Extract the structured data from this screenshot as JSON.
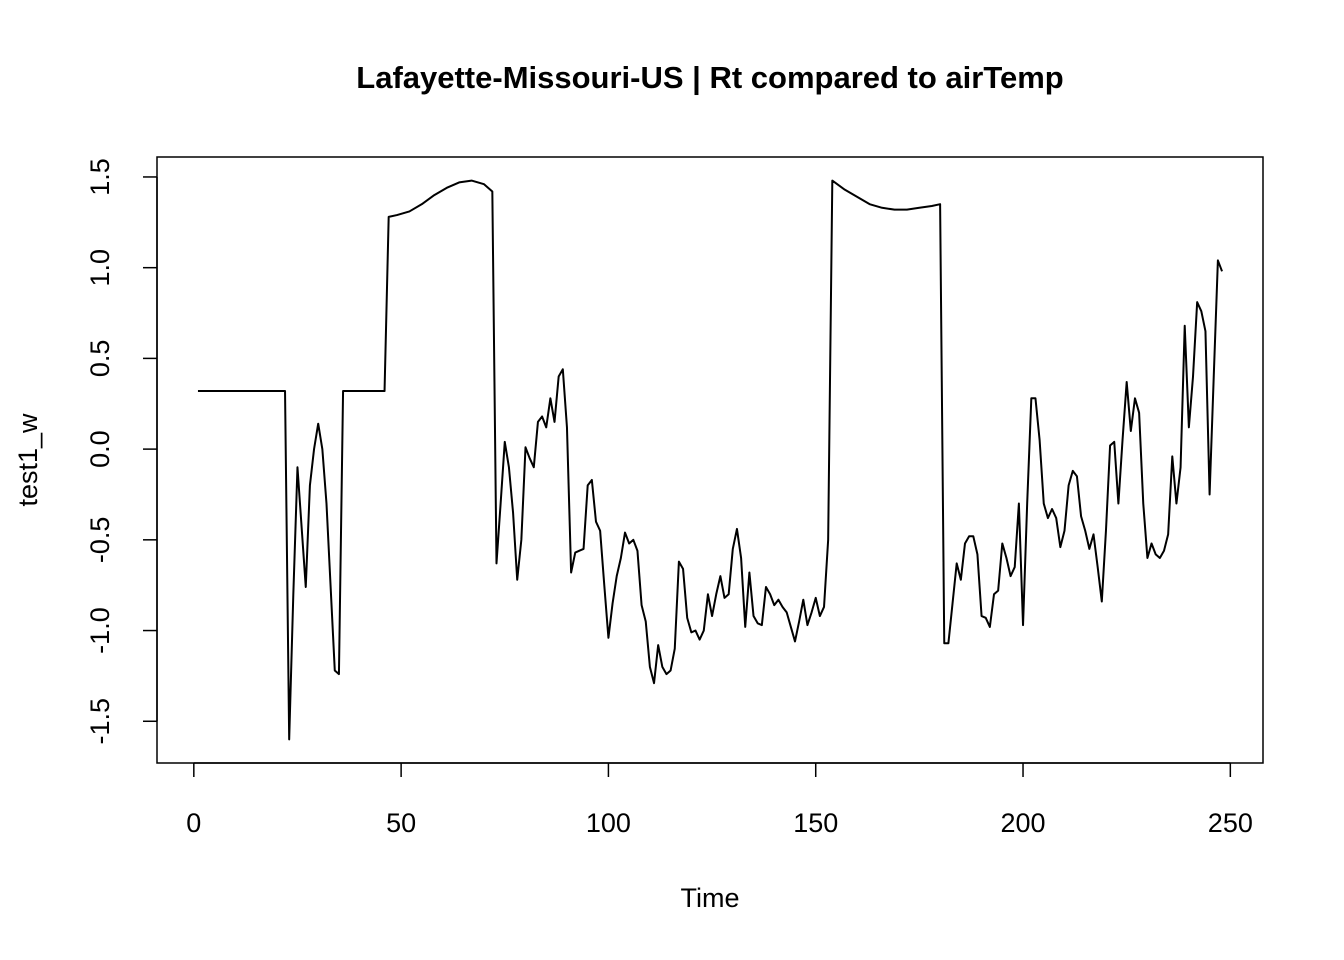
{
  "chart_data": {
    "type": "line",
    "title": "Lafayette-Missouri-US | Rt compared to airTemp",
    "xlabel": "Time",
    "ylabel": "test1_w",
    "color": "#000000",
    "xlim": [
      -8.88,
      257.88
    ],
    "ylim": [
      -1.73,
      1.61
    ],
    "xticks": [
      0,
      50,
      100,
      150,
      200,
      250
    ],
    "yticks": [
      -1.5,
      {
        "value": -1,
        "label": "-1.0"
      },
      -0.5,
      {
        "value": 0,
        "label": "0.0"
      },
      0.5,
      {
        "value": 1,
        "label": "1.0"
      },
      1.5
    ],
    "x": [
      1,
      22,
      23,
      24,
      25,
      27,
      28,
      29,
      30,
      31,
      32,
      34,
      35,
      36,
      46,
      47,
      49,
      52,
      55,
      58,
      61,
      64,
      67,
      70,
      72,
      73,
      74,
      75,
      76,
      77,
      78,
      79,
      80,
      81,
      82,
      83,
      84,
      85,
      86,
      87,
      88,
      89,
      90,
      91,
      92,
      93,
      94,
      95,
      96,
      97,
      98,
      99,
      100,
      101,
      102,
      103,
      104,
      105,
      106,
      107,
      108,
      109,
      110,
      111,
      112,
      113,
      114,
      115,
      116,
      117,
      118,
      119,
      120,
      121,
      122,
      123,
      124,
      125,
      126,
      127,
      128,
      129,
      130,
      131,
      132,
      133,
      134,
      135,
      136,
      137,
      138,
      139,
      140,
      141,
      142,
      143,
      144,
      145,
      146,
      147,
      148,
      149,
      150,
      151,
      152,
      153,
      154,
      157,
      160,
      163,
      166,
      169,
      172,
      175,
      178,
      180,
      181,
      182,
      183,
      184,
      185,
      186,
      187,
      188,
      189,
      190,
      191,
      192,
      193,
      194,
      195,
      196,
      197,
      198,
      199,
      200,
      201,
      202,
      203,
      204,
      205,
      206,
      207,
      208,
      209,
      210,
      211,
      212,
      213,
      214,
      215,
      216,
      217,
      218,
      219,
      220,
      221,
      222,
      223,
      224,
      225,
      226,
      227,
      228,
      229,
      230,
      231,
      232,
      233,
      234,
      235,
      236,
      237,
      238,
      239,
      240,
      241,
      242,
      243,
      244,
      245,
      246,
      247,
      248
    ],
    "values": [
      0.32,
      0.32,
      -1.6,
      -0.8,
      -0.1,
      -0.76,
      -0.2,
      0.0,
      0.14,
      0.0,
      -0.3,
      -1.22,
      -1.24,
      0.32,
      0.32,
      1.28,
      1.29,
      1.31,
      1.35,
      1.4,
      1.44,
      1.47,
      1.48,
      1.46,
      1.42,
      -0.63,
      -0.3,
      0.04,
      -0.1,
      -0.35,
      -0.72,
      -0.5,
      0.01,
      -0.05,
      -0.1,
      0.15,
      0.18,
      0.12,
      0.28,
      0.15,
      0.4,
      0.44,
      0.12,
      -0.68,
      -0.57,
      -0.56,
      -0.55,
      -0.2,
      -0.17,
      -0.4,
      -0.45,
      -0.75,
      -1.04,
      -0.85,
      -0.7,
      -0.6,
      -0.46,
      -0.52,
      -0.5,
      -0.56,
      -0.86,
      -0.95,
      -1.2,
      -1.29,
      -1.08,
      -1.2,
      -1.24,
      -1.22,
      -1.1,
      -0.62,
      -0.66,
      -0.93,
      -1.01,
      -1.0,
      -1.05,
      -1.0,
      -0.8,
      -0.92,
      -0.8,
      -0.7,
      -0.82,
      -0.8,
      -0.55,
      -0.44,
      -0.6,
      -0.98,
      -0.68,
      -0.92,
      -0.96,
      -0.97,
      -0.76,
      -0.8,
      -0.86,
      -0.83,
      -0.87,
      -0.9,
      -0.98,
      -1.06,
      -0.95,
      -0.83,
      -0.97,
      -0.9,
      -0.82,
      -0.92,
      -0.87,
      -0.5,
      1.48,
      1.43,
      1.39,
      1.35,
      1.33,
      1.32,
      1.32,
      1.33,
      1.34,
      1.35,
      -1.07,
      -1.07,
      -0.85,
      -0.63,
      -0.72,
      -0.52,
      -0.48,
      -0.48,
      -0.58,
      -0.92,
      -0.93,
      -0.98,
      -0.8,
      -0.78,
      -0.52,
      -0.6,
      -0.7,
      -0.65,
      -0.3,
      -0.97,
      -0.3,
      0.28,
      0.28,
      0.05,
      -0.3,
      -0.38,
      -0.33,
      -0.38,
      -0.54,
      -0.45,
      -0.2,
      -0.12,
      -0.15,
      -0.37,
      -0.45,
      -0.55,
      -0.47,
      -0.65,
      -0.84,
      -0.45,
      0.02,
      0.04,
      -0.3,
      0.05,
      0.37,
      0.1,
      0.28,
      0.2,
      -0.3,
      -0.6,
      -0.52,
      -0.58,
      -0.6,
      -0.56,
      -0.47,
      -0.04,
      -0.3,
      -0.1,
      0.68,
      0.12,
      0.4,
      0.81,
      0.76,
      0.65,
      -0.25,
      0.4,
      1.04,
      0.98
    ]
  }
}
